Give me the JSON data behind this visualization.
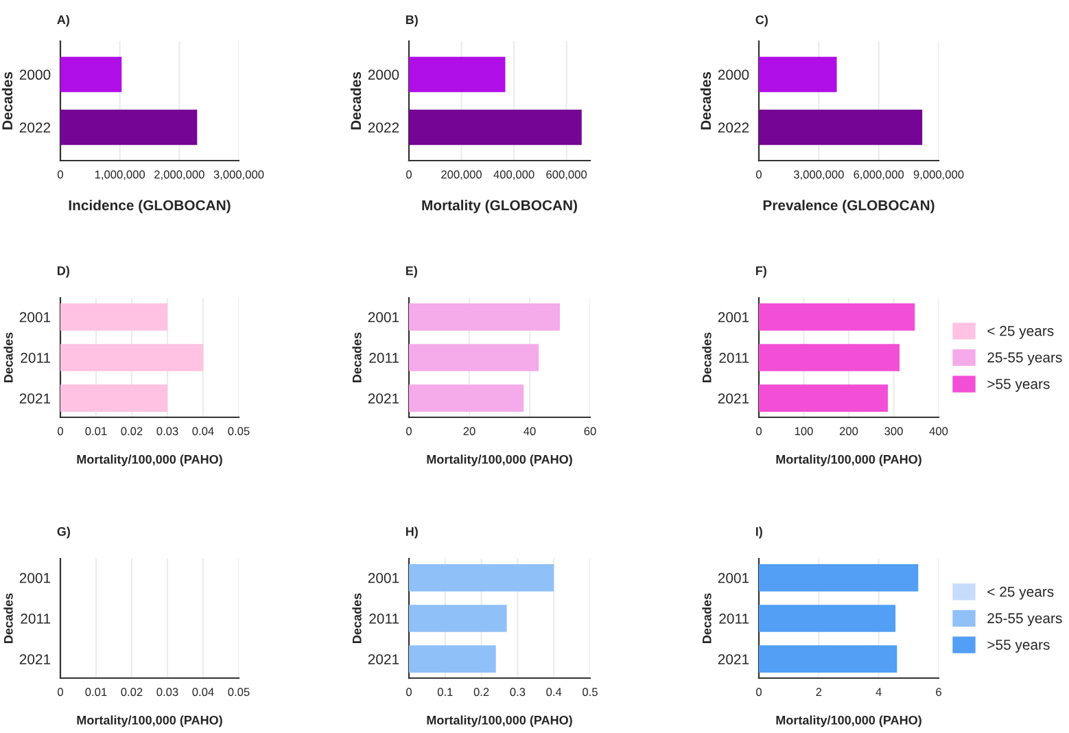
{
  "chart_data": [
    {
      "type": "bar",
      "orientation": "horizontal",
      "title": "A)",
      "ylabel": "Decades",
      "xlabel": "Incidence (GLOBOCAN)",
      "categories": [
        "2000",
        "2022"
      ],
      "values": [
        1030000,
        2300000
      ],
      "colors": [
        "#b00ee6",
        "#750594"
      ],
      "xlim": [
        0,
        3000000
      ],
      "xticks": [
        {
          "value": 0,
          "label": "0"
        },
        {
          "value": 1000000,
          "label": "1,000,000"
        },
        {
          "value": 2000000,
          "label": "2,000,000"
        },
        {
          "value": 3000000,
          "label": "3,000,000"
        }
      ],
      "grid": "x"
    },
    {
      "type": "bar",
      "orientation": "horizontal",
      "title": "B)",
      "ylabel": "Decades",
      "xlabel": "Mortality (GLOBOCAN)",
      "categories": [
        "2000",
        "2022"
      ],
      "values": [
        367000,
        658000
      ],
      "colors": [
        "#b00ee6",
        "#750594"
      ],
      "xlim": [
        0,
        690000
      ],
      "xticks": [
        {
          "value": 0,
          "label": "0"
        },
        {
          "value": 200000,
          "label": "200,000"
        },
        {
          "value": 400000,
          "label": "400,000"
        },
        {
          "value": 600000,
          "label": "600,000"
        }
      ],
      "grid": "x"
    },
    {
      "type": "bar",
      "orientation": "horizontal",
      "title": "C)",
      "ylabel": "Decades",
      "xlabel": "Prevalence (GLOBOCAN)",
      "categories": [
        "2000",
        "2022"
      ],
      "values": [
        3900000,
        8180000
      ],
      "colors": [
        "#b00ee6",
        "#750594"
      ],
      "xlim": [
        0,
        9000000
      ],
      "xticks": [
        {
          "value": 0,
          "label": "0"
        },
        {
          "value": 3000000,
          "label": "3,000,000"
        },
        {
          "value": 6000000,
          "label": "6,000,000"
        },
        {
          "value": 9000000,
          "label": "9,000,000"
        }
      ],
      "grid": "x"
    },
    {
      "type": "bar",
      "orientation": "horizontal",
      "title": "D)",
      "ylabel": "Decades",
      "xlabel": "Mortality/100,000 (PAHO)",
      "categories": [
        "2001",
        "2011",
        "2021"
      ],
      "series": [
        {
          "name": "< 25 years",
          "color": "#ffc2e2",
          "values": [
            0.03,
            0.04,
            0.03
          ]
        }
      ],
      "xlim": [
        0,
        0.05
      ],
      "xticks": [
        0,
        0.01,
        0.02,
        0.03,
        0.04,
        0.05
      ],
      "grid": "x"
    },
    {
      "type": "bar",
      "orientation": "horizontal",
      "title": "E)",
      "ylabel": "Decades",
      "xlabel": "Mortality/100,000 (PAHO)",
      "categories": [
        "2001",
        "2011",
        "2021"
      ],
      "series": [
        {
          "name": "25-55 years",
          "color": "#f5aae9",
          "values": [
            50,
            43,
            38
          ]
        }
      ],
      "xlim": [
        0,
        60
      ],
      "xticks": [
        0,
        20,
        40,
        60
      ],
      "grid": "x"
    },
    {
      "type": "bar",
      "orientation": "horizontal",
      "title": "F)",
      "ylabel": "Decades",
      "xlabel": "Mortality/100,000 (PAHO)",
      "categories": [
        "2001",
        "2011",
        "2021"
      ],
      "series": [
        {
          "name": ">55 years",
          "color": "#f34fd6",
          "values": [
            347,
            313,
            287
          ]
        }
      ],
      "xlim": [
        0,
        400
      ],
      "xticks": [
        0,
        100,
        200,
        300,
        400
      ],
      "grid": "x",
      "legend": "right"
    },
    {
      "type": "bar",
      "orientation": "horizontal",
      "title": "G)",
      "ylabel": "Decades",
      "xlabel": "Mortality/100,000 (PAHO)",
      "categories": [
        "2001",
        "2011",
        "2021"
      ],
      "series": [
        {
          "name": "< 25 years",
          "color": "#c6dcfa",
          "values": [
            0,
            0,
            0
          ]
        }
      ],
      "xlim": [
        0,
        0.05
      ],
      "xticks": [
        0,
        0.01,
        0.02,
        0.03,
        0.04,
        0.05
      ],
      "grid": "x"
    },
    {
      "type": "bar",
      "orientation": "horizontal",
      "title": "H)",
      "ylabel": "Decades",
      "xlabel": "Mortality/100,000 (PAHO)",
      "categories": [
        "2001",
        "2011",
        "2021"
      ],
      "series": [
        {
          "name": "25-55 years",
          "color": "#90c0f8",
          "values": [
            0.4,
            0.27,
            0.24
          ]
        }
      ],
      "xlim": [
        0,
        0.5
      ],
      "xticks": [
        0,
        0.1,
        0.2,
        0.3,
        0.4,
        0.5
      ],
      "grid": "x"
    },
    {
      "type": "bar",
      "orientation": "horizontal",
      "title": "I)",
      "ylabel": "Decades",
      "xlabel": "Mortality/100,000 (PAHO)",
      "categories": [
        "2001",
        "2011",
        "2021"
      ],
      "series": [
        {
          "name": ">55 years",
          "color": "#529ff5",
          "values": [
            5.32,
            4.56,
            4.61
          ]
        }
      ],
      "xlim": [
        0,
        6
      ],
      "xticks": [
        0,
        2,
        4,
        6
      ],
      "grid": "x",
      "legend": "right"
    }
  ]
}
